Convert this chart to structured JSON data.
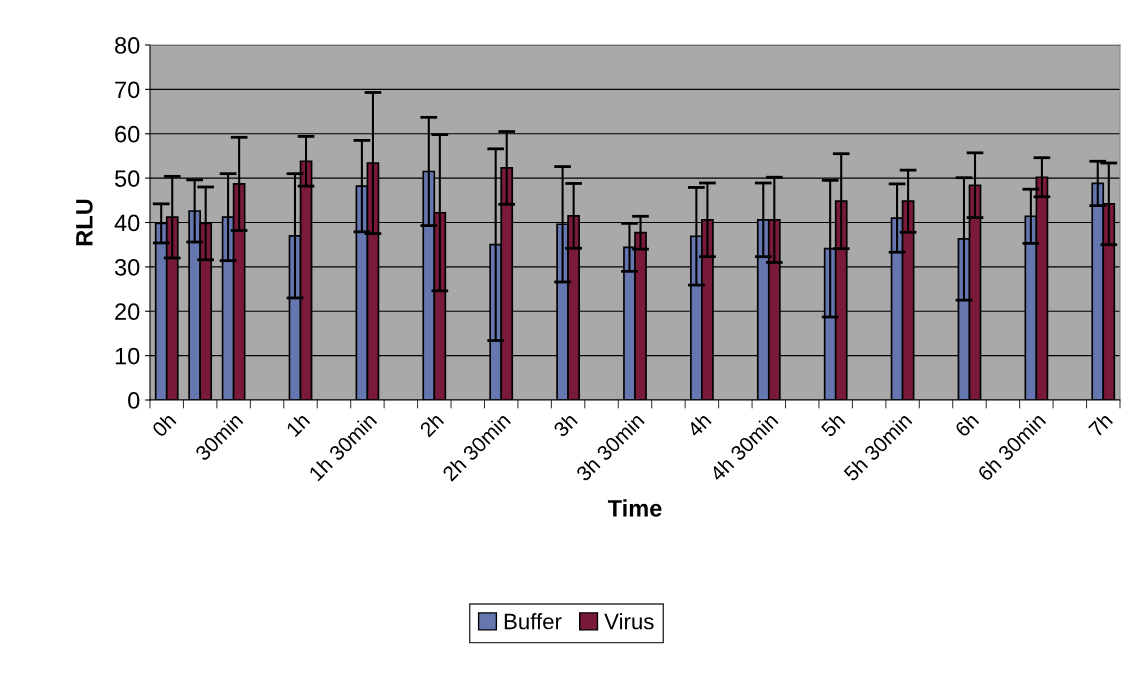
{
  "chart_data": {
    "type": "bar",
    "xlabel": "Time",
    "ylabel": "RLU",
    "categories": [
      "0h",
      null,
      "30min",
      null,
      "1h",
      null,
      "1h 30min",
      null,
      "2h",
      null,
      "2h 30min",
      null,
      "3h",
      null,
      "3h 30min",
      null,
      "4h",
      null,
      "4h 30min",
      null,
      "5h",
      null,
      "5h 30min",
      null,
      "6h",
      null,
      "6h 30min",
      null,
      "7h"
    ],
    "series": [
      {
        "name": "Buffer",
        "color": "#6677b0",
        "values": [
          39.8,
          42.6,
          41.2,
          null,
          37.0,
          null,
          48.2,
          null,
          51.5,
          null,
          35.0,
          null,
          39.6,
          null,
          34.4,
          null,
          36.9,
          null,
          40.6,
          null,
          34.1,
          null,
          41.0,
          null,
          36.3,
          null,
          41.4,
          null,
          48.8
        ],
        "errors": [
          4.4,
          7.0,
          9.8,
          null,
          14.0,
          null,
          10.3,
          null,
          12.2,
          null,
          21.6,
          null,
          13.0,
          null,
          5.4,
          null,
          11.0,
          null,
          8.3,
          null,
          15.4,
          null,
          7.7,
          null,
          13.8,
          null,
          6.1,
          null,
          5.0
        ]
      },
      {
        "name": "Virus",
        "color": "#7a1a3a",
        "values": [
          41.2,
          39.8,
          48.7,
          null,
          53.8,
          null,
          53.4,
          null,
          42.2,
          null,
          52.3,
          null,
          41.5,
          null,
          37.7,
          null,
          40.6,
          null,
          40.6,
          null,
          44.8,
          null,
          44.8,
          null,
          48.4,
          null,
          50.2,
          null,
          44.2
        ],
        "errors": [
          9.2,
          8.2,
          10.5,
          null,
          5.6,
          null,
          15.9,
          null,
          17.6,
          null,
          8.2,
          null,
          7.3,
          null,
          3.7,
          null,
          8.3,
          null,
          9.6,
          null,
          10.7,
          null,
          7.0,
          null,
          7.3,
          null,
          4.4,
          null,
          9.2
        ]
      }
    ],
    "ylim": [
      0,
      80
    ],
    "yticks": [
      0,
      10,
      20,
      30,
      40,
      50,
      60,
      70,
      80
    ],
    "grid": "y",
    "legend": "bottom"
  }
}
